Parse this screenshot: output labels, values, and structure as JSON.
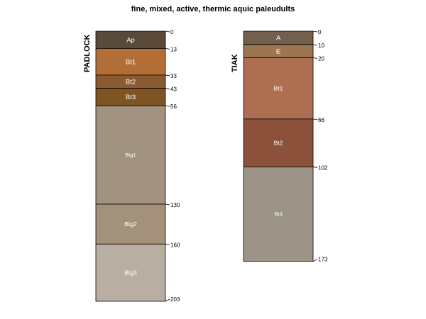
{
  "title": "fine, mixed, active, thermic aquic paleudults",
  "profiles": [
    {
      "name": "PADLOCK",
      "horizons": [
        {
          "name": "Ap",
          "top": 0,
          "bottom": 13,
          "color": "#5a4a3a"
        },
        {
          "name": "Bt1",
          "top": 13,
          "bottom": 33,
          "color": "#b36e38"
        },
        {
          "name": "Bt2",
          "top": 33,
          "bottom": 43,
          "color": "#8a5a30"
        },
        {
          "name": "Bt3",
          "top": 43,
          "bottom": 56,
          "color": "#7e5422"
        },
        {
          "name": "Btg1",
          "top": 56,
          "bottom": 130,
          "color": "#a29380"
        },
        {
          "name": "Btg2",
          "top": 130,
          "bottom": 160,
          "color": "#a4917c"
        },
        {
          "name": "Btg3",
          "top": 160,
          "bottom": 203,
          "color": "#b8aea2"
        }
      ],
      "depths": [
        "0",
        "13",
        "33",
        "43",
        "56",
        "130",
        "160",
        "203"
      ]
    },
    {
      "name": "TIAK",
      "horizons": [
        {
          "name": "A",
          "top": 0,
          "bottom": 10,
          "color": "#735f4d"
        },
        {
          "name": "E",
          "top": 10,
          "bottom": 20,
          "color": "#9c7650"
        },
        {
          "name": "Bt1",
          "top": 20,
          "bottom": 66,
          "color": "#ae6e52"
        },
        {
          "name": "Bt2",
          "top": 66,
          "bottom": 102,
          "color": "#8c513b"
        },
        {
          "name": "Bt3",
          "top": 102,
          "bottom": 173,
          "color": "#9c9486"
        }
      ],
      "depths": [
        "0",
        "10",
        "20",
        "66",
        "102",
        "173"
      ]
    }
  ]
}
